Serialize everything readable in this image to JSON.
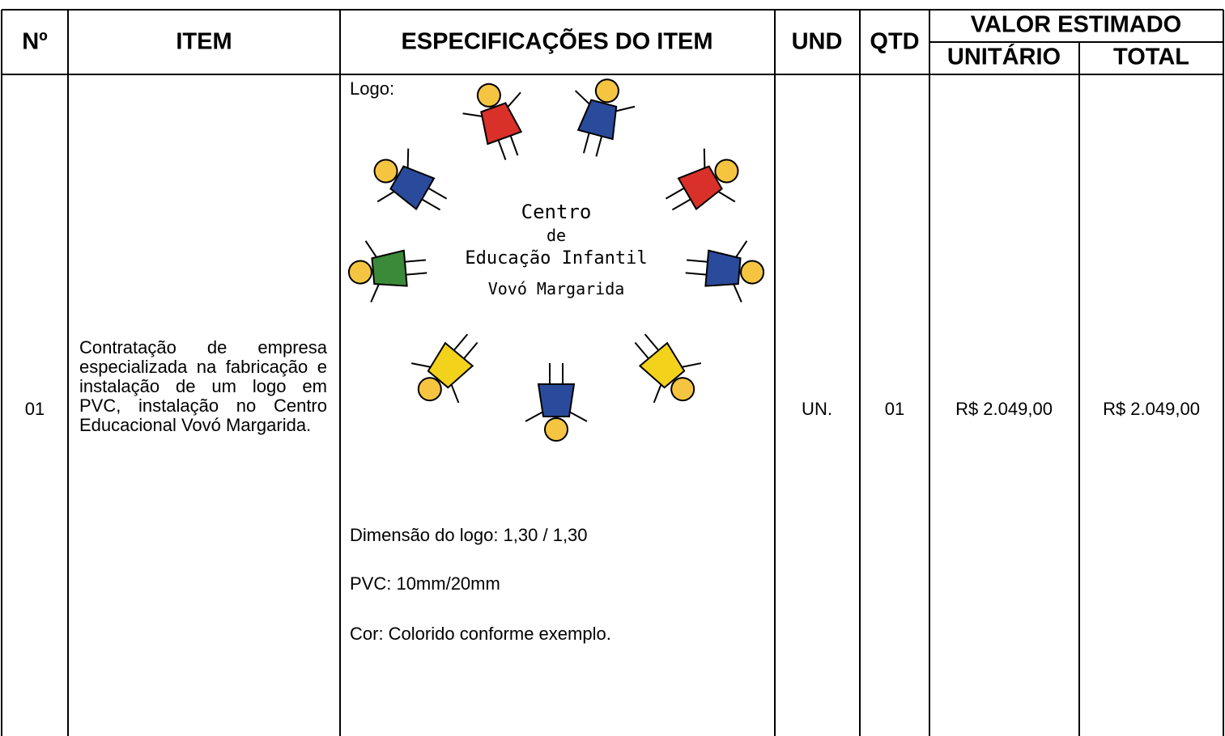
{
  "table": {
    "header": {
      "no": "Nº",
      "item": "ITEM",
      "spec": "ESPECIFICAÇÕES DO ITEM",
      "und": "UND",
      "qtd": "QTD",
      "valor": "VALOR ESTIMADO",
      "unit": "UNITÁRIO",
      "total": "TOTAL"
    },
    "rows": [
      {
        "no": "01",
        "item": "Contratação de empresa especializada na fabricação e instalação de um logo em PVC, instalação no Centro Educacional Vovó Margarida.",
        "spec": {
          "logo_label": "Logo:",
          "logo_text": [
            "Centro",
            "de",
            "Educação Infantil",
            "Vovó Margarida"
          ],
          "lines": [
            "Dimensão do logo: 1,30 / 1,30",
            "PVC: 10mm/20mm",
            "Cor: Colorido conforme exemplo."
          ]
        },
        "und": "UN.",
        "qtd": "01",
        "unit": "R$ 2.049,00",
        "total": "R$ 2.049,00"
      }
    ]
  }
}
